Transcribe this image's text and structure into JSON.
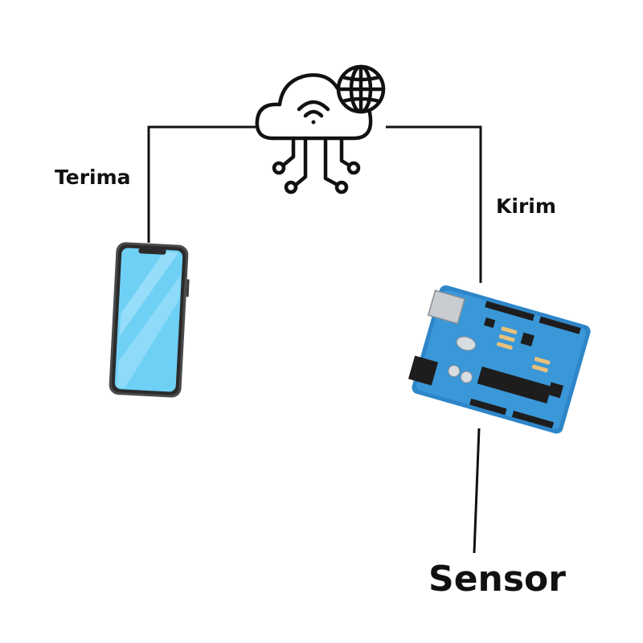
{
  "labels": {
    "receive": "Terima",
    "send": "Kirim",
    "sensor": "Sensor"
  },
  "nodes": [
    {
      "id": "cloud",
      "icon": "cloud-iot-icon"
    },
    {
      "id": "phone",
      "icon": "smartphone-icon"
    },
    {
      "id": "board",
      "icon": "arduino-board-icon"
    }
  ],
  "colors": {
    "line": "#111111",
    "screen": "#6fd0f5",
    "board": "#2e86c9",
    "phone_frame": "#4a4a4a"
  }
}
